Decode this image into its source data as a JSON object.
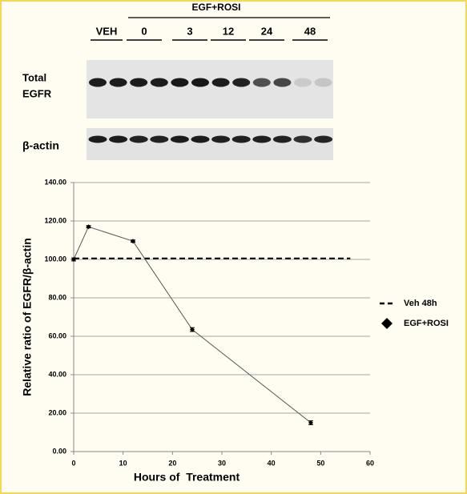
{
  "blot": {
    "group_label": "EGF+ROSI",
    "vehicle_label": "VEH",
    "timepoints": [
      "0",
      "3",
      "12",
      "24",
      "48"
    ],
    "row_labels": {
      "total_egfr": [
        "Total",
        "EGFR"
      ],
      "beta_actin": "β-actin"
    }
  },
  "chart_data": {
    "type": "line",
    "x_label": "Hours of  Treatment",
    "y_label": "Relative ratio of EGFR/β-actin",
    "xlim": [
      0,
      60
    ],
    "xticks": [
      0,
      10,
      20,
      30,
      40,
      50,
      60
    ],
    "ylim": [
      0,
      140
    ],
    "yticks": [
      {
        "value": 0,
        "label": "0.00"
      },
      {
        "value": 20,
        "label": "20.00"
      },
      {
        "value": 40,
        "label": "40.00"
      },
      {
        "value": 60,
        "label": "60.00"
      },
      {
        "value": 80,
        "label": "80.00"
      },
      {
        "value": 100,
        "label": "100.00"
      },
      {
        "value": 120,
        "label": "120.00"
      },
      {
        "value": 140,
        "label": "140.00"
      }
    ],
    "grid": true,
    "legend": "right",
    "series": [
      {
        "name": "Veh 48h",
        "color": "#000000",
        "dashed": true,
        "x": [
          0,
          56
        ],
        "values": [
          100.5,
          100.5
        ]
      },
      {
        "name": "EGF+ROSI",
        "color": "#555555",
        "marker": "diamond",
        "x": [
          0,
          3,
          12,
          24,
          48
        ],
        "values": [
          100,
          117,
          109.5,
          63.5,
          15
        ],
        "errors": [
          0.8,
          0.6,
          0.6,
          1,
          1
        ]
      }
    ]
  }
}
